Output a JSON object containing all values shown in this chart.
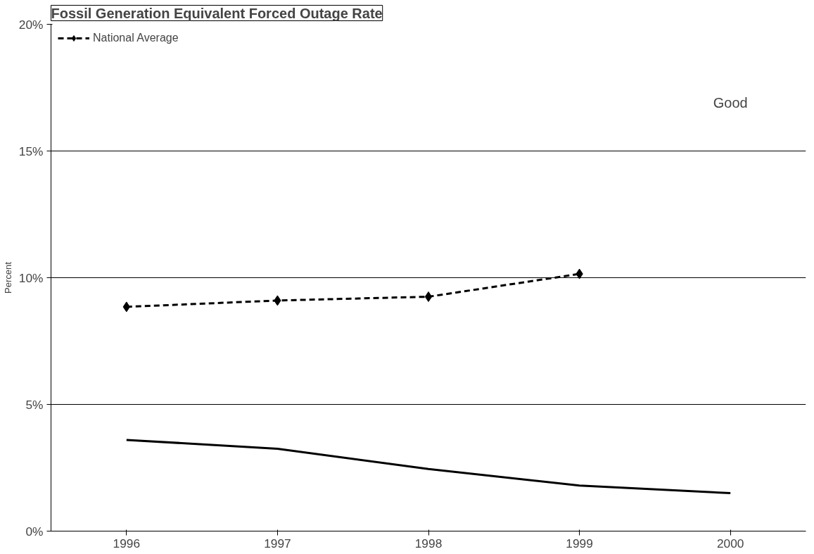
{
  "chart_data": {
    "type": "line",
    "title": "Fossil Generation Equivalent Forced Outage Rate",
    "ylabel": "Percent",
    "categories": [
      "1996",
      "1997",
      "1998",
      "1999",
      "2000"
    ],
    "series": [
      {
        "name": "National Average",
        "color": "#000000",
        "values": [
          8.85,
          9.1,
          9.25,
          10.15,
          null
        ],
        "marker": "diamond",
        "line_style": "dashed"
      },
      {
        "color": "#000000",
        "values": [
          3.6,
          3.25,
          2.45,
          1.8,
          1.5
        ],
        "marker": "none",
        "line_style": "solid"
      }
    ],
    "ylim": [
      0,
      20
    ],
    "yticks": [
      {
        "value": 0,
        "label": "0%"
      },
      {
        "value": 5,
        "label": "5%"
      },
      {
        "value": 10,
        "label": "10%"
      },
      {
        "value": 15,
        "label": "15%"
      },
      {
        "value": 20,
        "label": "20%"
      }
    ],
    "grid": "y",
    "legend": "top left",
    "annotations": [
      "Good"
    ]
  }
}
